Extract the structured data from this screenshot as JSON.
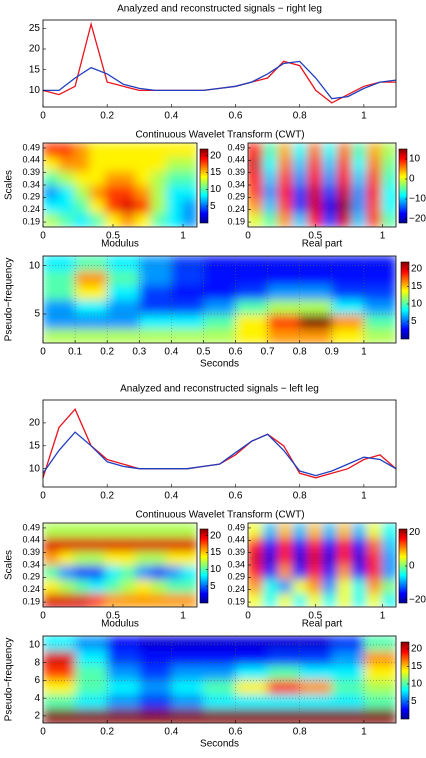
{
  "chart_data": [
    {
      "type": "line",
      "title": "Analyzed and reconstructed signals − right leg",
      "x": [
        0,
        0.05,
        0.1,
        0.15,
        0.2,
        0.25,
        0.3,
        0.35,
        0.4,
        0.45,
        0.5,
        0.55,
        0.6,
        0.65,
        0.7,
        0.75,
        0.8,
        0.85,
        0.9,
        0.95,
        1.0,
        1.05,
        1.1
      ],
      "series": [
        {
          "color": "#e8141e",
          "values": [
            10,
            9,
            11,
            26,
            12,
            11,
            10,
            10,
            10,
            10,
            10,
            10.5,
            11,
            12,
            13,
            17,
            16,
            10,
            7,
            9,
            11,
            12,
            12
          ]
        },
        {
          "color": "#1f3fbf",
          "values": [
            10,
            10,
            13,
            15.5,
            14,
            11.5,
            10.5,
            10,
            10,
            10,
            10,
            10.5,
            11,
            12,
            14,
            16.5,
            17,
            13,
            8,
            8.5,
            10.5,
            12,
            12.5
          ]
        }
      ],
      "xlim": [
        0,
        1.1
      ],
      "xticks": [
        0,
        0.2,
        0.4,
        0.6,
        0.8,
        1
      ],
      "ylim": [
        6,
        27
      ],
      "yticks": [
        10,
        15,
        20,
        25
      ]
    },
    {
      "type": "heatmap",
      "title": "Continuous Wavelet Transform (CWT)",
      "xlabel": "Modulus",
      "ylabel": "Scales",
      "xlim": [
        0,
        1.1
      ],
      "xticks": [
        0,
        0.5,
        1
      ],
      "ylim": [
        0.17,
        0.51
      ],
      "yticks": [
        0.19,
        0.24,
        0.29,
        0.34,
        0.39,
        0.44,
        0.49
      ],
      "clim": [
        0,
        22
      ],
      "cticks": [
        5,
        10,
        15,
        20
      ],
      "z": [
        [
          12,
          10,
          8,
          10,
          14,
          16,
          14,
          10,
          8,
          6
        ],
        [
          8,
          8,
          10,
          14,
          18,
          20,
          18,
          12,
          8,
          6
        ],
        [
          6,
          8,
          12,
          16,
          18,
          18,
          16,
          12,
          8,
          8
        ],
        [
          10,
          12,
          14,
          14,
          16,
          16,
          14,
          12,
          10,
          10
        ],
        [
          14,
          16,
          16,
          14,
          14,
          14,
          14,
          14,
          12,
          12
        ],
        [
          18,
          18,
          16,
          14,
          14,
          14,
          14,
          14,
          14,
          14
        ]
      ]
    },
    {
      "type": "heatmap",
      "xlabel": "Real part",
      "xlim": [
        0,
        1.1
      ],
      "xticks": [
        0,
        0.5,
        1
      ],
      "ylim": [
        0.17,
        0.51
      ],
      "yticks": [
        0.19,
        0.24,
        0.29,
        0.34,
        0.39,
        0.44,
        0.49
      ],
      "clim": [
        -22,
        15
      ],
      "cticks": [
        10,
        0,
        {
          "value": -10,
          "label": "−10"
        },
        {
          "value": -20,
          "label": "−20"
        }
      ],
      "z": [
        [
          0,
          -5,
          5,
          -10,
          10,
          -15,
          12,
          -10,
          8,
          -5
        ],
        [
          5,
          -10,
          8,
          -15,
          12,
          -18,
          14,
          -12,
          8,
          -8
        ],
        [
          8,
          -12,
          10,
          -15,
          12,
          -15,
          12,
          -12,
          10,
          -8
        ],
        [
          10,
          -10,
          8,
          -12,
          10,
          -12,
          10,
          -10,
          8,
          -6
        ],
        [
          12,
          -8,
          6,
          -10,
          8,
          -10,
          8,
          -8,
          6,
          -4
        ],
        [
          10,
          -6,
          4,
          -8,
          6,
          -8,
          6,
          -6,
          4,
          -2
        ]
      ]
    },
    {
      "type": "heatmap",
      "xlabel": "Seconds",
      "ylabel": "Pseudo−frequency",
      "grid": true,
      "xlim": [
        0,
        1.1
      ],
      "xticks": [
        0,
        0.1,
        0.2,
        0.3,
        0.4,
        0.5,
        0.6,
        0.7,
        0.8,
        0.9,
        1
      ],
      "ylim": [
        2,
        11
      ],
      "yticks": [
        5,
        10
      ],
      "clim": [
        0,
        22
      ],
      "cticks": [
        5,
        10,
        15,
        20
      ],
      "z": [
        [
          12,
          12,
          12,
          12,
          12,
          12,
          14,
          16,
          16,
          14,
          12
        ],
        [
          6,
          6,
          6,
          8,
          8,
          10,
          14,
          18,
          22,
          16,
          10
        ],
        [
          6,
          8,
          6,
          4,
          4,
          6,
          10,
          12,
          12,
          8,
          6
        ],
        [
          10,
          14,
          8,
          4,
          3,
          3,
          4,
          6,
          6,
          4,
          4
        ],
        [
          10,
          16,
          10,
          6,
          4,
          3,
          3,
          3,
          3,
          3,
          3
        ],
        [
          8,
          10,
          8,
          6,
          4,
          3,
          3,
          3,
          3,
          3,
          3
        ]
      ]
    },
    {
      "type": "line",
      "title": "Analyzed and reconstructed signals − left leg",
      "x": [
        0,
        0.05,
        0.1,
        0.15,
        0.2,
        0.25,
        0.3,
        0.35,
        0.4,
        0.45,
        0.5,
        0.55,
        0.6,
        0.65,
        0.7,
        0.75,
        0.8,
        0.85,
        0.9,
        0.95,
        1.0,
        1.05,
        1.1
      ],
      "series": [
        {
          "color": "#e8141e",
          "values": [
            8,
            19,
            23,
            15,
            12,
            11,
            10,
            10,
            10,
            10,
            10.5,
            11,
            13,
            16,
            17.5,
            15,
            9,
            8,
            9,
            10,
            12,
            13,
            10
          ]
        },
        {
          "color": "#1f3fbf",
          "values": [
            9,
            14,
            18,
            15,
            11.5,
            10.5,
            10,
            10,
            10,
            10,
            10.5,
            11,
            13.5,
            16,
            17.5,
            14,
            9.5,
            8.5,
            9.5,
            11,
            12.5,
            12,
            10
          ]
        }
      ],
      "xlim": [
        0,
        1.1
      ],
      "xticks": [
        0,
        0.2,
        0.4,
        0.6,
        0.8,
        1
      ],
      "ylim": [
        6,
        25
      ],
      "yticks": [
        10,
        15,
        20
      ]
    },
    {
      "type": "heatmap",
      "title": "Continuous Wavelet Transform (CWT)",
      "xlabel": "Modulus",
      "ylabel": "Scales",
      "xlim": [
        0,
        1.1
      ],
      "xticks": [
        0,
        0.5,
        1
      ],
      "ylim": [
        0.17,
        0.51
      ],
      "yticks": [
        0.19,
        0.24,
        0.29,
        0.34,
        0.39,
        0.44,
        0.49
      ],
      "clim": [
        0,
        22
      ],
      "cticks": [
        5,
        10,
        15,
        20
      ],
      "z": [
        [
          20,
          20,
          20,
          18,
          16,
          16,
          16,
          16,
          16,
          16
        ],
        [
          14,
          12,
          10,
          8,
          10,
          12,
          14,
          12,
          10,
          10
        ],
        [
          10,
          6,
          4,
          4,
          8,
          10,
          6,
          4,
          6,
          8
        ],
        [
          16,
          14,
          12,
          12,
          14,
          14,
          12,
          12,
          14,
          14
        ],
        [
          20,
          20,
          20,
          20,
          20,
          20,
          20,
          20,
          20,
          20
        ],
        [
          12,
          12,
          12,
          12,
          12,
          12,
          12,
          12,
          12,
          12
        ]
      ]
    },
    {
      "type": "heatmap",
      "xlabel": "Real part",
      "xlim": [
        0,
        1.1
      ],
      "xticks": [
        0,
        0.5,
        1
      ],
      "ylim": [
        0.17,
        0.51
      ],
      "yticks": [
        0.19,
        0.24,
        0.29,
        0.34,
        0.39,
        0.44,
        0.49
      ],
      "clim": [
        -22,
        22
      ],
      "cticks": [
        20,
        0,
        {
          "value": -20,
          "label": "−20"
        }
      ],
      "z": [
        [
          5,
          -5,
          5,
          -5,
          5,
          -5,
          5,
          -5,
          5,
          -5
        ],
        [
          10,
          -5,
          -10,
          5,
          10,
          -10,
          5,
          -5,
          10,
          0
        ],
        [
          15,
          -15,
          10,
          -15,
          15,
          -15,
          10,
          -15,
          15,
          -10
        ],
        [
          18,
          -18,
          15,
          -18,
          18,
          -18,
          15,
          -18,
          15,
          -10
        ],
        [
          15,
          -15,
          15,
          -15,
          15,
          -15,
          15,
          -15,
          12,
          -8
        ],
        [
          5,
          -8,
          8,
          -8,
          8,
          -8,
          8,
          -8,
          5,
          -5
        ]
      ]
    },
    {
      "type": "heatmap",
      "xlabel": "Seconds",
      "ylabel": "Pseudo−frequency",
      "grid": true,
      "xlim": [
        0,
        1.1
      ],
      "xticks": [
        0,
        0.2,
        0.4,
        0.6,
        0.8,
        1
      ],
      "ylim": [
        1.2,
        11
      ],
      "yticks": [
        2,
        4,
        6,
        8,
        10
      ],
      "clim": [
        0,
        22
      ],
      "cticks": [
        5,
        10,
        15,
        20
      ],
      "z": [
        [
          22,
          22,
          22,
          22,
          22,
          22,
          22,
          22,
          22,
          22,
          22
        ],
        [
          10,
          8,
          6,
          4,
          6,
          8,
          8,
          8,
          8,
          8,
          10
        ],
        [
          14,
          10,
          8,
          6,
          8,
          10,
          14,
          18,
          16,
          10,
          12
        ],
        [
          18,
          10,
          6,
          4,
          6,
          6,
          8,
          10,
          8,
          8,
          14
        ],
        [
          20,
          8,
          4,
          3,
          3,
          3,
          3,
          4,
          4,
          6,
          16
        ],
        [
          8,
          6,
          3,
          2,
          2,
          2,
          2,
          2,
          2,
          4,
          10
        ]
      ]
    }
  ]
}
